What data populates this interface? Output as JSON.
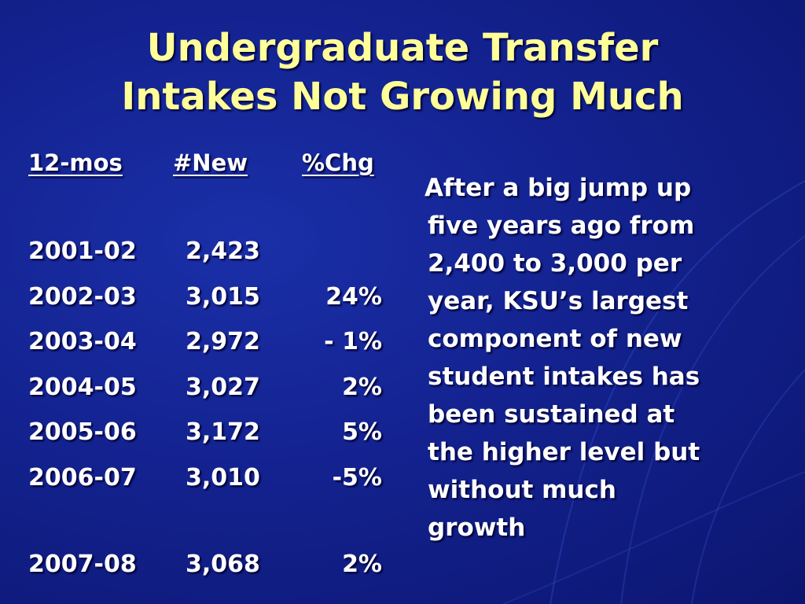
{
  "title": {
    "line1": "Undergraduate Transfer",
    "line2": "Intakes Not Growing Much"
  },
  "table": {
    "headers": {
      "period": "12-mos",
      "new": "#New",
      "change": "%Chg"
    },
    "rows": [
      {
        "period": "2001-02",
        "new": "2,423",
        "change": ""
      },
      {
        "period": "2002-03",
        "new": "3,015",
        "change": "24%"
      },
      {
        "period": "2003-04",
        "new": "2,972",
        "change": "- 1%"
      },
      {
        "period": "2004-05",
        "new": "3,027",
        "change": "2%"
      },
      {
        "period": "2005-06",
        "new": "3,172",
        "change": "5%"
      },
      {
        "period": "2006-07",
        "new": "3,010",
        "change": "-5%"
      },
      {
        "period": "2007-08",
        "new": "3,068",
        "change": "2%"
      }
    ]
  },
  "note": {
    "lines": [
      "After a big jump up",
      "five years ago from",
      "2,400 to 3,000 per",
      "year, KSU’s largest",
      "component of new",
      "student intakes has",
      "been sustained at",
      "the higher level but",
      "without much",
      "growth"
    ]
  },
  "colors": {
    "background": "#13228f",
    "title": "#ffff99",
    "text": "#ffffff"
  }
}
